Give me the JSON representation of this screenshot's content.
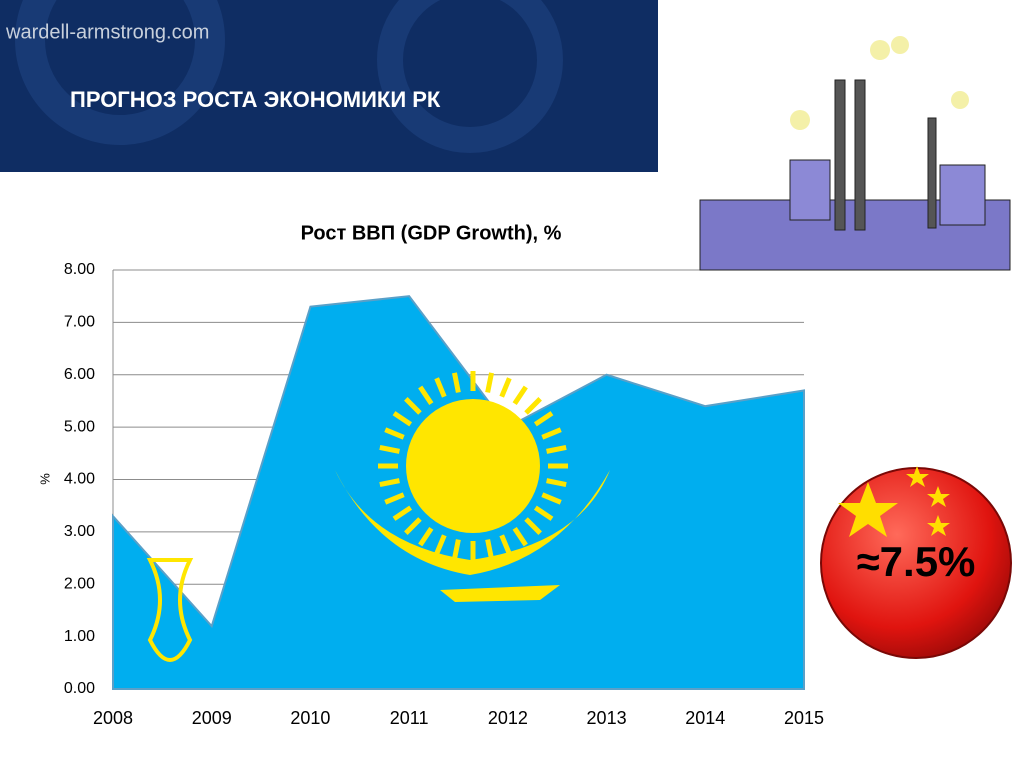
{
  "header": {
    "site": "wardell-armstrong.com",
    "title": "ПРОГНОЗ РОСТА ЭКОНОМИКИ РК"
  },
  "badge": {
    "text": "≈7.5%"
  },
  "chart_data": {
    "type": "area",
    "title": "Рост ВВП (GDP Growth), %",
    "y_label": "%",
    "categories": [
      "2008",
      "2009",
      "2010",
      "2011",
      "2012",
      "2013",
      "2014",
      "2015"
    ],
    "values": [
      3.3,
      1.2,
      7.3,
      7.5,
      5.0,
      6.0,
      5.4,
      5.7
    ],
    "color": "#00aeef",
    "ylim": [
      0,
      8
    ],
    "yticks": [
      {
        "value": 0,
        "label": "0.00"
      },
      {
        "value": 1,
        "label": "1.00"
      },
      {
        "value": 2,
        "label": "2.00"
      },
      {
        "value": 3,
        "label": "3.00"
      },
      {
        "value": 4,
        "label": "4.00"
      },
      {
        "value": 5,
        "label": "5.00"
      },
      {
        "value": 6,
        "label": "6.00"
      },
      {
        "value": 7,
        "label": "7.00"
      },
      {
        "value": 8,
        "label": "8.00"
      }
    ],
    "grid": true
  }
}
